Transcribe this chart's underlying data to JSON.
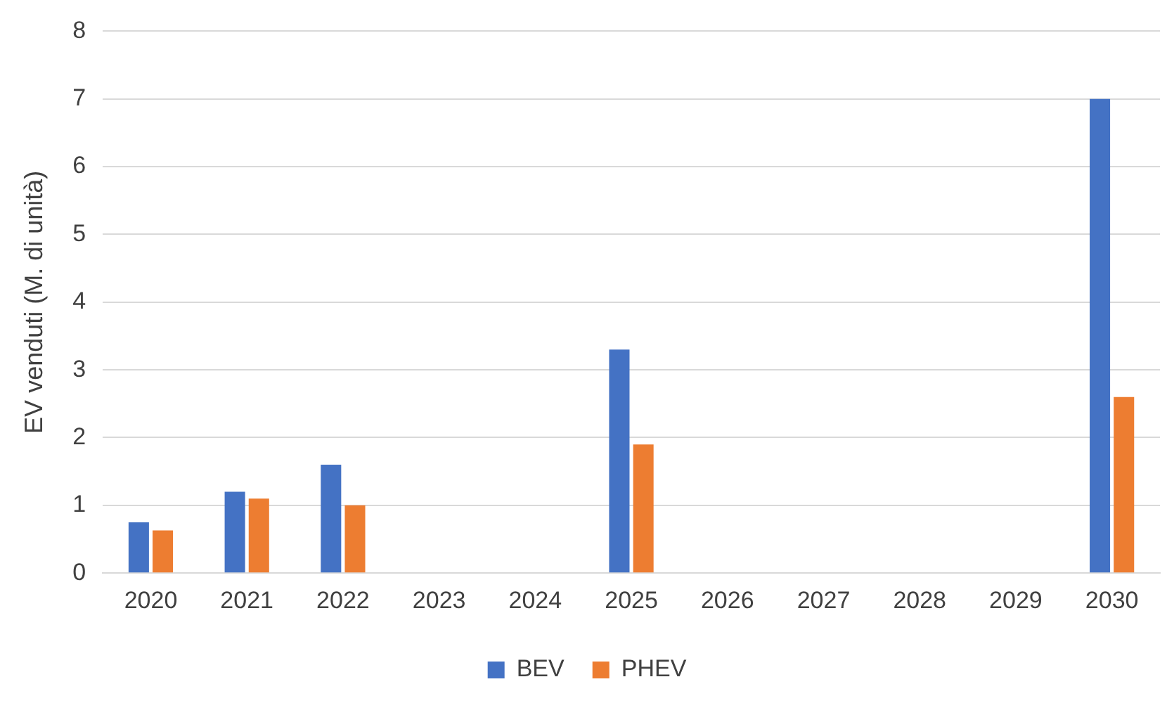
{
  "chart_data": {
    "type": "bar",
    "ylabel": "EV venduti (M. di unità)",
    "categories": [
      "2020",
      "2021",
      "2022",
      "2023",
      "2024",
      "2025",
      "2026",
      "2027",
      "2028",
      "2029",
      "2030"
    ],
    "series": [
      {
        "name": "BEV",
        "color": "#4472c4",
        "values": [
          0.75,
          1.2,
          1.6,
          null,
          null,
          3.3,
          null,
          null,
          null,
          null,
          7.0
        ]
      },
      {
        "name": "PHEV",
        "color": "#ed7d31",
        "values": [
          0.63,
          1.1,
          1.0,
          null,
          null,
          1.9,
          null,
          null,
          null,
          null,
          2.6
        ]
      }
    ],
    "ylim": [
      0,
      8
    ],
    "yticks": [
      0,
      1,
      2,
      3,
      4,
      5,
      6,
      7,
      8
    ],
    "grid": "y",
    "legend": "bottom"
  }
}
